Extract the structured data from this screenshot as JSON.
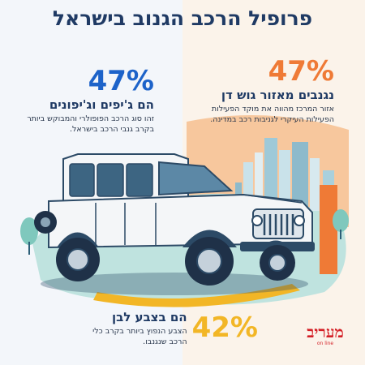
{
  "title": "פרופיל הרכב הגנוב בישראל",
  "stats": {
    "region": {
      "percent": "47%",
      "heading": "נגנבים מאזור גוש דן",
      "description": "אזור המרכז מהווה את מוקד הפעילות הפעילות העיקרי לגניבות רכב במדינה."
    },
    "type": {
      "percent": "47%",
      "heading": "הם ג'יפים וג'יפונים",
      "description": "זהו סוג הרכב הפופולרי והמבוקש ביותר בקרב גנבי הרכב בישראל."
    },
    "color": {
      "percent": "42%",
      "heading": "הם בצבע לבן",
      "description": "הצבע הנפוץ ביותר בקרב כלי הרכב שנגנבו."
    }
  },
  "logo": {
    "word": "מעריב",
    "sub": "on line"
  },
  "colors": {
    "title": "#1f3a64",
    "orange": "#ef7a36",
    "blue": "#1d63c9",
    "yellow": "#f2b626",
    "logo_red": "#d41f26"
  }
}
